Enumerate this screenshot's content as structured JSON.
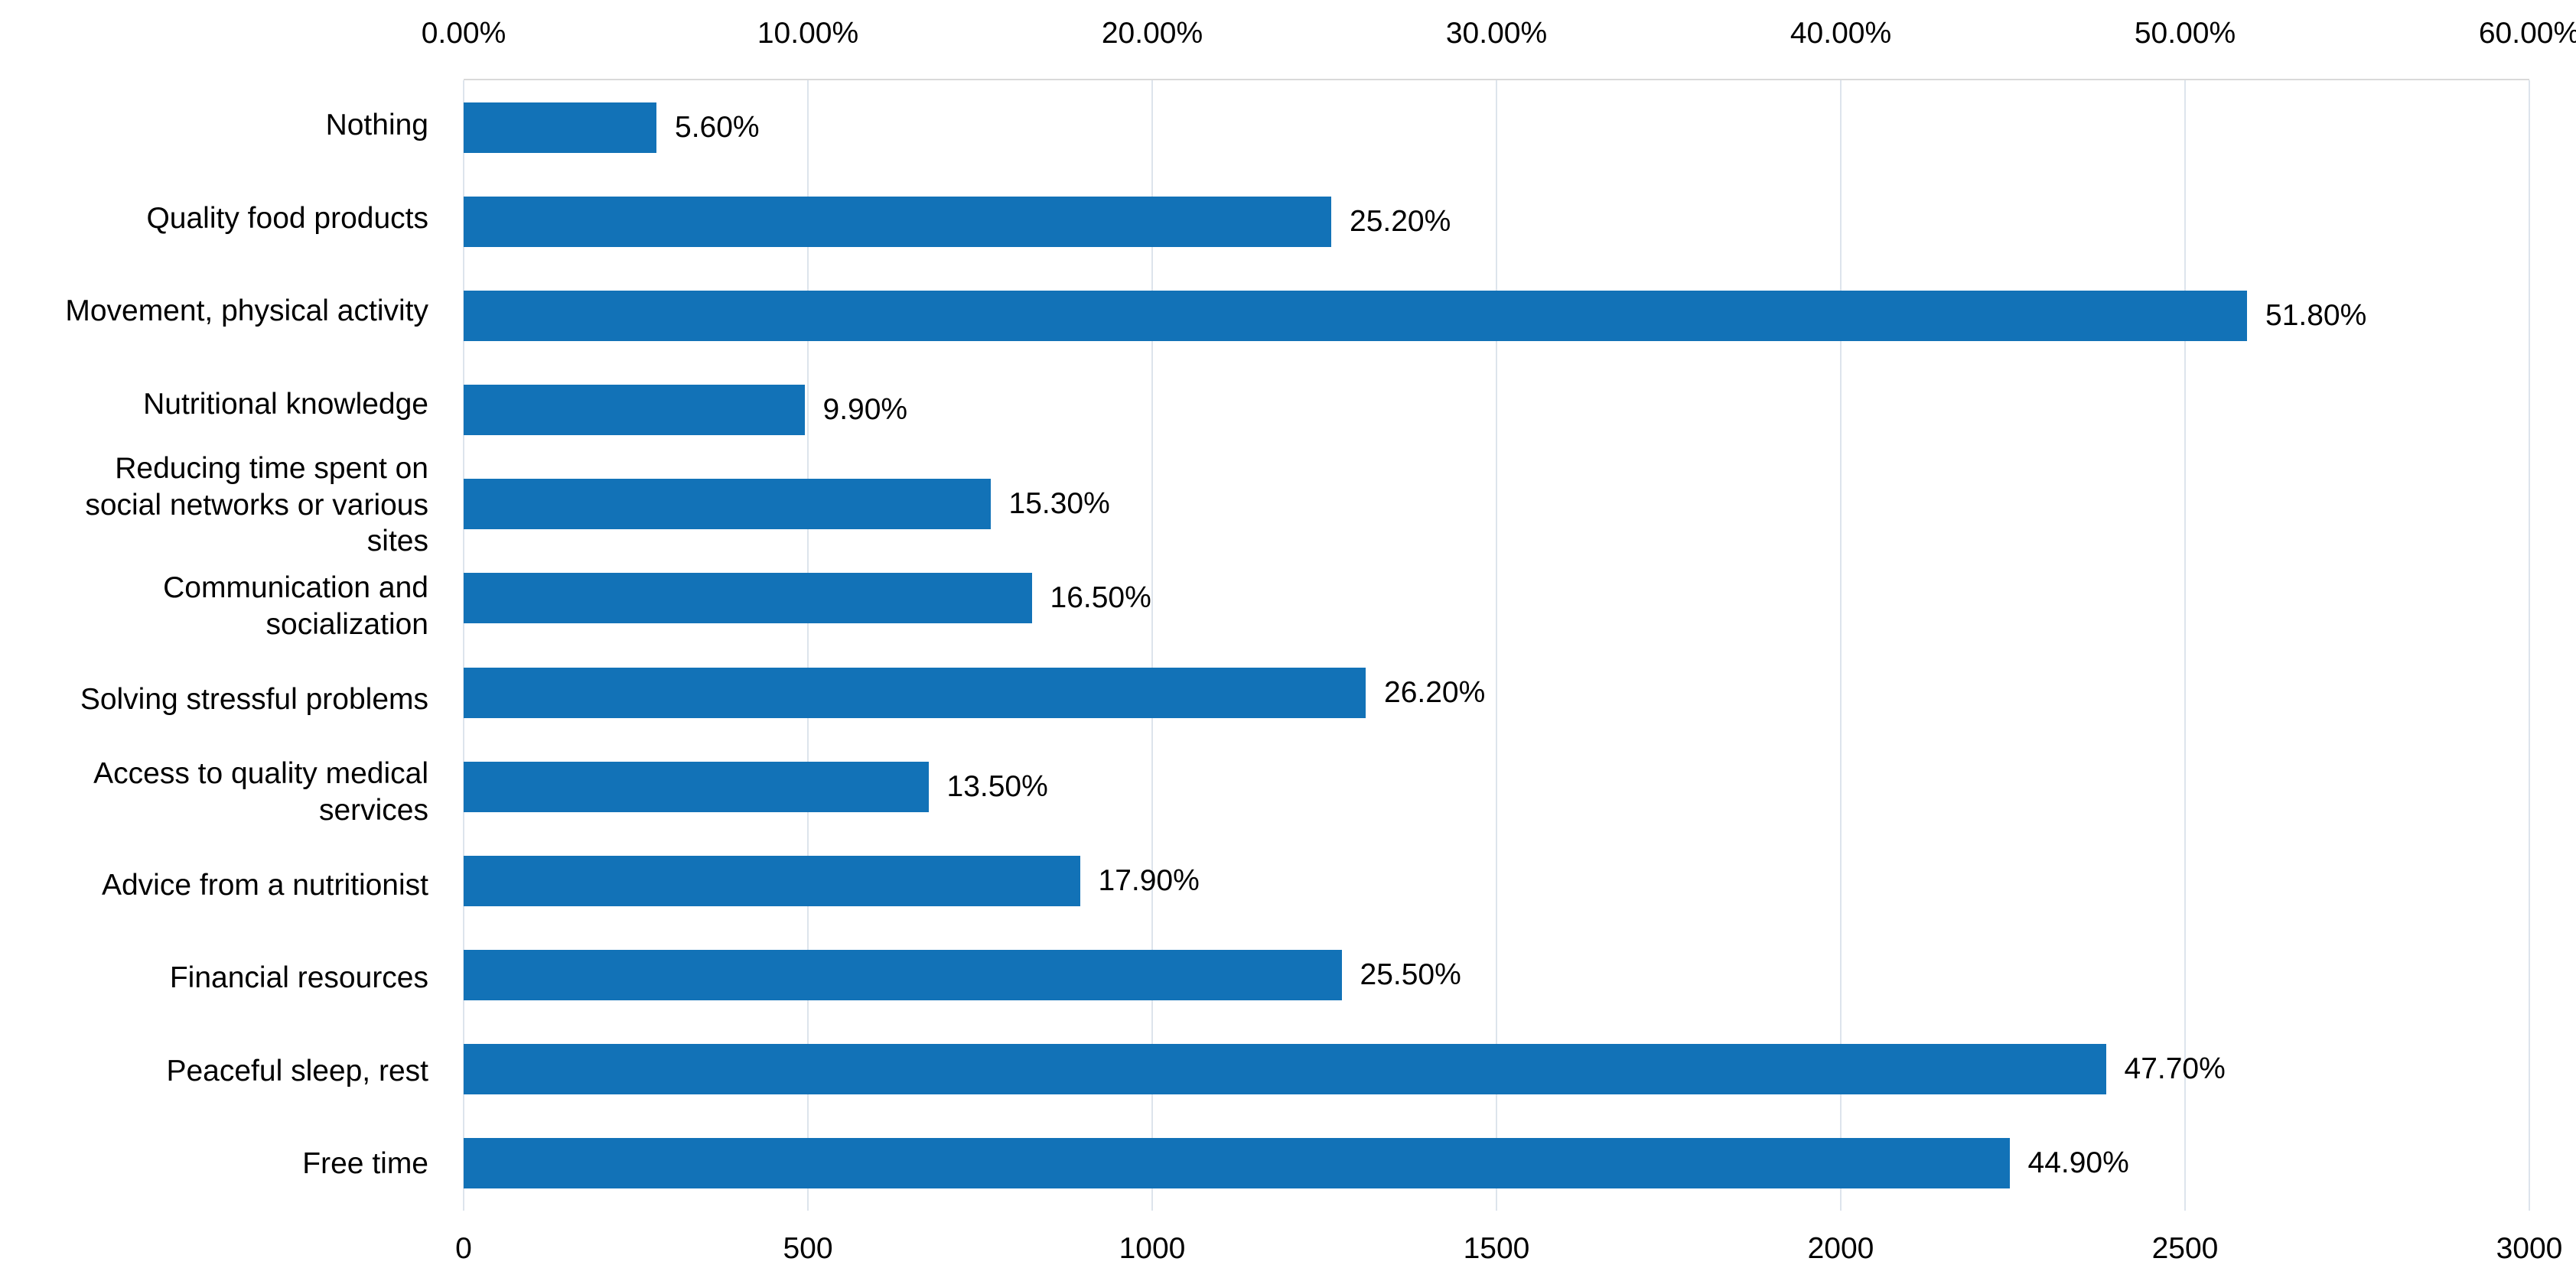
{
  "chart_data": {
    "type": "bar",
    "orientation": "horizontal",
    "title": "",
    "categories": [
      "Nothing",
      "Quality food products",
      "Movement, physical activity",
      "Nutritional knowledge",
      "Reducing time spent on social networks or various sites",
      "Communication and socialization",
      "Solving stressful problems",
      "Access to quality medical services",
      "Advice from a nutritionist",
      "Financial resources",
      "Peaceful sleep, rest",
      "Free time"
    ],
    "values": [
      5.6,
      25.2,
      51.8,
      9.9,
      15.3,
      16.5,
      26.2,
      13.5,
      17.9,
      25.5,
      47.7,
      44.9
    ],
    "data_labels": [
      "5.60%",
      "25.20%",
      "51.80%",
      "9.90%",
      "15.30%",
      "16.50%",
      "26.20%",
      "13.50%",
      "17.90%",
      "25.50%",
      "47.70%",
      "44.90%"
    ],
    "top_axis": {
      "labels": [
        "0.00%",
        "10.00%",
        "20.00%",
        "30.00%",
        "40.00%",
        "50.00%",
        "60.00%"
      ],
      "min": 0,
      "max": 60
    },
    "bottom_axis": {
      "labels": [
        "0",
        "500",
        "1000",
        "1500",
        "2000",
        "2500",
        "3000"
      ],
      "min": 0,
      "max": 3000
    },
    "grid": true,
    "legend": false,
    "bar_color": "#1272b7"
  }
}
